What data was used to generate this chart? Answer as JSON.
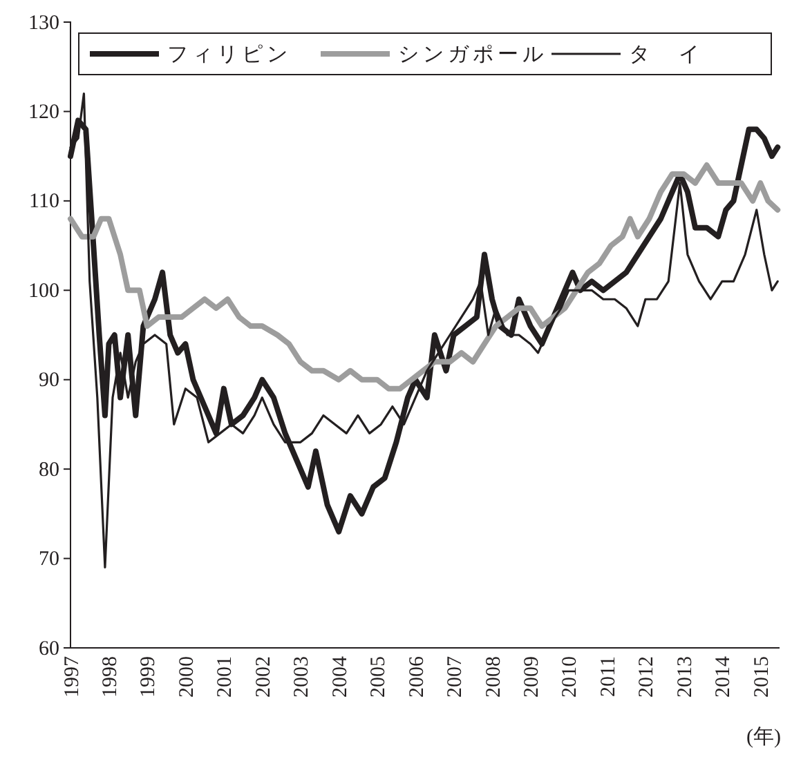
{
  "chart_data": {
    "type": "line",
    "xlabel": "(年)",
    "xlim": [
      1997,
      2015.5
    ],
    "xticks": [
      1997,
      1998,
      1999,
      2000,
      2001,
      2002,
      2003,
      2004,
      2005,
      2006,
      2007,
      2008,
      2009,
      2010,
      2011,
      2012,
      2013,
      2014,
      2015
    ],
    "ylim": [
      60,
      130
    ],
    "yticks": [
      60,
      70,
      80,
      90,
      100,
      110,
      120,
      130
    ],
    "grid": false,
    "legend": "top",
    "marker": "none",
    "line_style": "solid",
    "series": [
      {
        "name": "フィリピン",
        "color": "#231f20",
        "x": [
          1997.0,
          1997.2,
          1997.4,
          1997.6,
          1997.75,
          1997.9,
          1998.0,
          1998.15,
          1998.3,
          1998.5,
          1998.7,
          1998.9,
          1999.2,
          1999.4,
          1999.6,
          1999.8,
          2000.0,
          2000.2,
          2000.5,
          2000.8,
          2001.0,
          2001.2,
          2001.5,
          2001.8,
          2002.0,
          2002.3,
          2002.6,
          2002.9,
          2003.2,
          2003.4,
          2003.7,
          2004.0,
          2004.3,
          2004.6,
          2004.9,
          2005.2,
          2005.5,
          2005.8,
          2006.0,
          2006.3,
          2006.5,
          2006.8,
          2007.0,
          2007.3,
          2007.6,
          2007.8,
          2008.0,
          2008.2,
          2008.5,
          2008.7,
          2009.0,
          2009.3,
          2009.6,
          2009.9,
          2010.1,
          2010.3,
          2010.6,
          2010.9,
          2011.2,
          2011.5,
          2011.8,
          2012.1,
          2012.4,
          2012.7,
          2012.9,
          2013.1,
          2013.3,
          2013.6,
          2013.9,
          2014.1,
          2014.3,
          2014.5,
          2014.7,
          2014.9,
          2015.1,
          2015.3,
          2015.45
        ],
        "values": [
          115,
          119,
          118,
          105,
          95,
          86,
          94,
          95,
          88,
          95,
          86,
          96,
          99,
          102,
          95,
          93,
          94,
          90,
          87,
          84,
          89,
          85,
          86,
          88,
          90,
          88,
          84,
          81,
          78,
          82,
          76,
          73,
          77,
          75,
          78,
          79,
          83,
          88,
          90,
          88,
          95,
          91,
          95,
          96,
          97,
          104,
          99,
          96,
          95,
          99,
          96,
          94,
          97,
          100,
          102,
          100,
          101,
          100,
          101,
          102,
          104,
          106,
          108,
          111,
          113,
          111,
          107,
          107,
          106,
          109,
          110,
          114,
          118,
          118,
          117,
          115,
          116
        ]
      },
      {
        "name": "シンガポール",
        "color": "#9d9d9d",
        "x": [
          1997.0,
          1997.3,
          1997.6,
          1997.8,
          1998.0,
          1998.3,
          1998.5,
          1998.8,
          1999.0,
          1999.3,
          1999.6,
          1999.9,
          2000.2,
          2000.5,
          2000.8,
          2001.1,
          2001.4,
          2001.7,
          2002.0,
          2002.4,
          2002.7,
          2003.0,
          2003.3,
          2003.6,
          2004.0,
          2004.3,
          2004.6,
          2005.0,
          2005.3,
          2005.6,
          2005.9,
          2006.2,
          2006.5,
          2006.9,
          2007.2,
          2007.5,
          2007.8,
          2008.1,
          2008.4,
          2008.7,
          2009.0,
          2009.3,
          2009.6,
          2009.9,
          2010.2,
          2010.5,
          2010.8,
          2011.1,
          2011.4,
          2011.6,
          2011.8,
          2012.1,
          2012.4,
          2012.7,
          2013.0,
          2013.3,
          2013.6,
          2013.9,
          2014.2,
          2014.5,
          2014.8,
          2015.0,
          2015.2,
          2015.45
        ],
        "values": [
          108,
          106,
          106,
          108,
          108,
          104,
          100,
          100,
          96,
          97,
          97,
          97,
          98,
          99,
          98,
          99,
          97,
          96,
          96,
          95,
          94,
          92,
          91,
          91,
          90,
          91,
          90,
          90,
          89,
          89,
          90,
          91,
          92,
          92,
          93,
          92,
          94,
          96,
          97,
          98,
          98,
          96,
          97,
          98,
          100,
          102,
          103,
          105,
          106,
          108,
          106,
          108,
          111,
          113,
          113,
          112,
          114,
          112,
          112,
          112,
          110,
          112,
          110,
          109
        ]
      },
      {
        "name": "タ　イ",
        "color": "#231f20",
        "x": [
          1997.0,
          1997.2,
          1997.35,
          1997.5,
          1997.7,
          1997.9,
          1998.1,
          1998.3,
          1998.5,
          1998.7,
          1998.9,
          1999.2,
          1999.5,
          1999.7,
          2000.0,
          2000.3,
          2000.6,
          2000.9,
          2001.2,
          2001.5,
          2001.8,
          2002.0,
          2002.3,
          2002.6,
          2003.0,
          2003.3,
          2003.6,
          2003.9,
          2004.2,
          2004.5,
          2004.8,
          2005.1,
          2005.4,
          2005.7,
          2006.0,
          2006.3,
          2006.6,
          2006.9,
          2007.2,
          2007.5,
          2007.7,
          2007.9,
          2008.1,
          2008.4,
          2008.7,
          2009.0,
          2009.2,
          2009.5,
          2009.8,
          2010.0,
          2010.3,
          2010.6,
          2010.9,
          2011.2,
          2011.5,
          2011.8,
          2012.0,
          2012.3,
          2012.6,
          2012.9,
          2013.1,
          2013.4,
          2013.7,
          2014.0,
          2014.3,
          2014.6,
          2014.9,
          2015.1,
          2015.3,
          2015.45
        ],
        "values": [
          116,
          117,
          122,
          101,
          88,
          69,
          88,
          93,
          88,
          92,
          94,
          95,
          94,
          85,
          89,
          88,
          83,
          84,
          85,
          84,
          86,
          88,
          85,
          83,
          83,
          84,
          86,
          85,
          84,
          86,
          84,
          85,
          87,
          85,
          88,
          91,
          93,
          95,
          97,
          99,
          101,
          95,
          98,
          95,
          95,
          94,
          93,
          96,
          98,
          100,
          100,
          100,
          99,
          99,
          98,
          96,
          99,
          99,
          101,
          112,
          104,
          101,
          99,
          101,
          101,
          104,
          109,
          104,
          100,
          101
        ]
      }
    ]
  }
}
